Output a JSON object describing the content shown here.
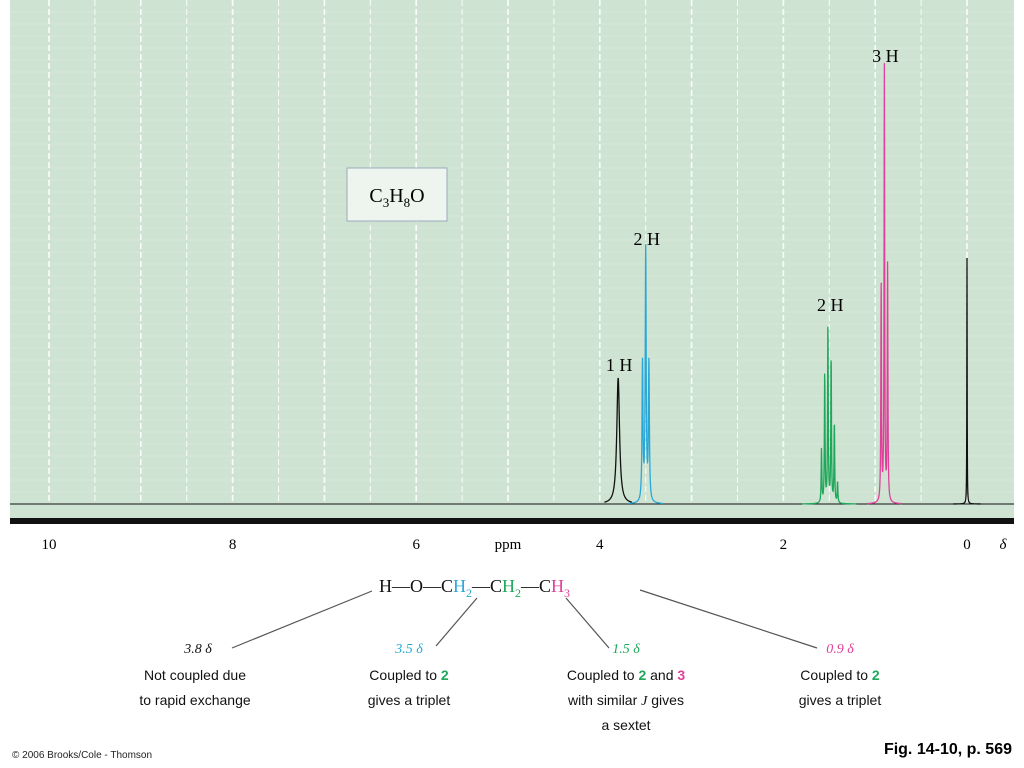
{
  "chart_data": {
    "type": "line",
    "title": "",
    "xlabel": "ppm",
    "ylabel": "",
    "xlim": [
      10.4,
      -0.45
    ],
    "x_ticks": [
      10,
      8,
      6,
      4,
      2,
      0
    ],
    "x_tick_labels": [
      "10",
      "8",
      "6",
      "4",
      "2",
      "0"
    ],
    "x_unit_symbol": "δ",
    "grid": true,
    "formula": {
      "c": "C",
      "c_sub": "3",
      "h": "H",
      "h_sub": "8",
      "o": "O"
    },
    "peaks": [
      {
        "id": "oh",
        "center": 3.8,
        "label": "1 H",
        "color": "#111111",
        "multiplicity": "singlet",
        "height": 0.42,
        "lines": [
          {
            "offset": 0,
            "rel": 1.0
          }
        ],
        "width": 0.018
      },
      {
        "id": "ch2-a",
        "center": 3.5,
        "label": "2 H",
        "color": "#29a8d8",
        "multiplicity": "triplet",
        "height": 0.84,
        "lines": [
          {
            "offset": -0.035,
            "rel": 0.55
          },
          {
            "offset": 0,
            "rel": 1.0
          },
          {
            "offset": 0.035,
            "rel": 0.55
          }
        ],
        "width": 0.006
      },
      {
        "id": "ch2-b",
        "center": 1.5,
        "label": "2 H",
        "color": "#1fa75a",
        "multiplicity": "sextet",
        "height": 0.62,
        "lines": [
          {
            "offset": -0.09,
            "rel": 0.12
          },
          {
            "offset": -0.055,
            "rel": 0.45
          },
          {
            "offset": -0.02,
            "rel": 0.82
          },
          {
            "offset": 0.015,
            "rel": 1.0
          },
          {
            "offset": 0.05,
            "rel": 0.72
          },
          {
            "offset": 0.085,
            "rel": 0.3
          }
        ],
        "width": 0.004
      },
      {
        "id": "ch3",
        "center": 0.9,
        "label": "3 H",
        "color": "#e0409a",
        "multiplicity": "triplet",
        "height": 1.45,
        "lines": [
          {
            "offset": -0.035,
            "rel": 0.55
          },
          {
            "offset": 0,
            "rel": 1.0
          },
          {
            "offset": 0.035,
            "rel": 0.5
          }
        ],
        "width": 0.004
      },
      {
        "id": "tms",
        "center": 0.0,
        "label": "",
        "color": "#111111",
        "multiplicity": "singlet",
        "height": 0.82,
        "lines": [
          {
            "offset": 0,
            "rel": 1.0
          }
        ],
        "width": 0.002
      }
    ]
  },
  "structure": {
    "atoms": [
      {
        "text": "H",
        "sub": "",
        "color": "#111111"
      },
      {
        "text": "O",
        "sub": "",
        "color": "#111111"
      },
      {
        "text": "C",
        "sub": "H",
        "sub2": "2",
        "color": "#29a8d8"
      },
      {
        "text": "C",
        "sub": "H",
        "sub2": "2",
        "color": "#1fa75a"
      },
      {
        "text": "C",
        "sub": "H",
        "sub2": "3",
        "color": "#e0409a"
      }
    ],
    "bond": "—"
  },
  "annotations": [
    {
      "shift": "3.8 δ",
      "shift_color": "#111111",
      "lines": [
        [
          {
            "t": "Not coupled due"
          }
        ],
        [
          {
            "t": "to rapid exchange"
          }
        ]
      ]
    },
    {
      "shift": "3.5 δ",
      "shift_color": "#29a8d8",
      "lines": [
        [
          {
            "t": "Coupled to "
          },
          {
            "t": "2",
            "c": "#1fa75a"
          }
        ],
        [
          {
            "t": "gives a triplet"
          }
        ]
      ]
    },
    {
      "shift": "1.5 δ",
      "shift_color": "#1fa75a",
      "lines": [
        [
          {
            "t": "Coupled to "
          },
          {
            "t": "2",
            "c": "#1fa75a"
          },
          {
            "t": " and "
          },
          {
            "t": "3",
            "c": "#e0409a"
          }
        ],
        [
          {
            "t": "with similar "
          },
          {
            "t": "J",
            "i": true
          },
          {
            "t": " gives"
          }
        ],
        [
          {
            "t": "a sextet"
          }
        ]
      ]
    },
    {
      "shift": "0.9 δ",
      "shift_color": "#e0409a",
      "lines": [
        [
          {
            "t": "Coupled to "
          },
          {
            "t": "2",
            "c": "#1fa75a"
          }
        ],
        [
          {
            "t": "gives a triplet"
          }
        ]
      ]
    }
  ],
  "footer": {
    "copyright": "© 2006 Brooks/Cole - Thomson",
    "figure_ref": "Fig. 14-10, p. 569"
  },
  "colors": {
    "plot_background": "#cfe3d2",
    "grid": "#ffffff",
    "axis": "#111111"
  }
}
